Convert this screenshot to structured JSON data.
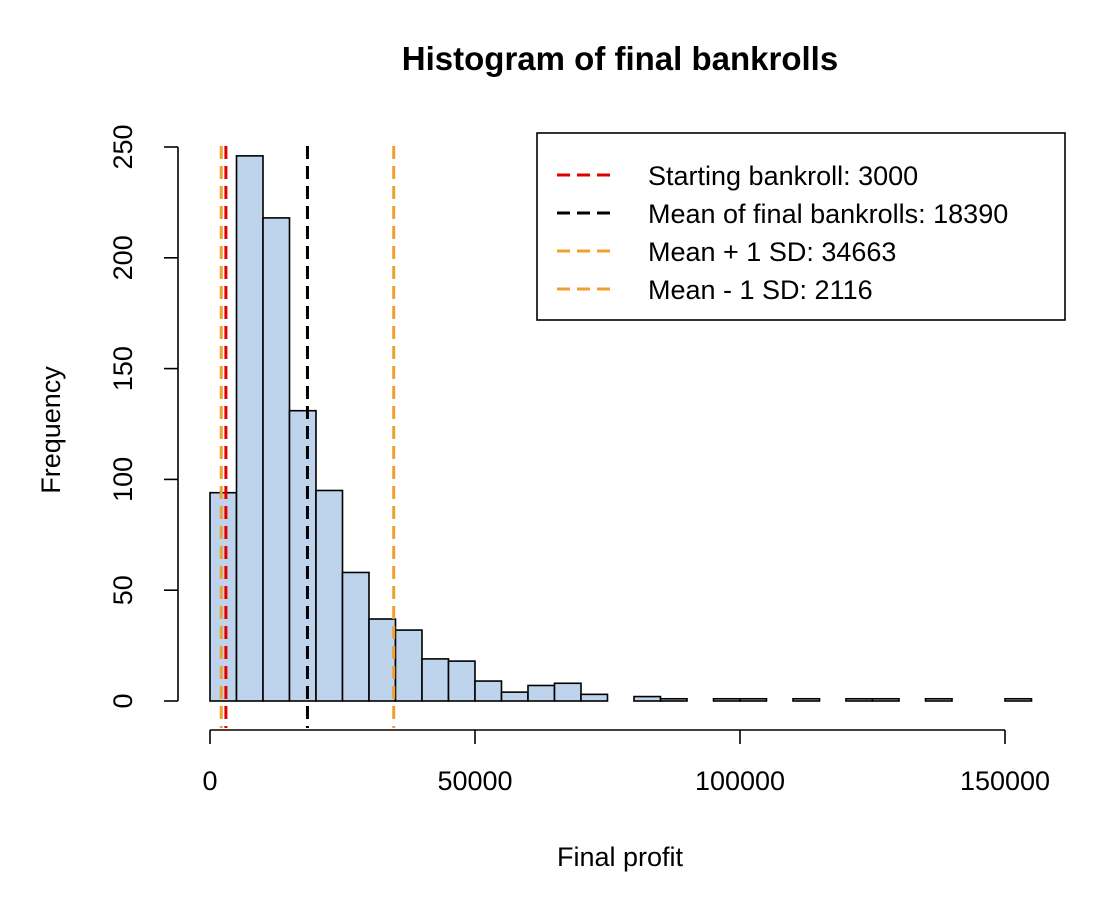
{
  "chart_data": {
    "type": "bar",
    "title": "Histogram of final bankrolls",
    "xlabel": "Final profit",
    "ylabel": "Frequency",
    "xlim": [
      0,
      155000
    ],
    "ylim": [
      0,
      250
    ],
    "bin_width": 5000,
    "x_ticks": [
      0,
      50000,
      100000,
      150000
    ],
    "y_ticks": [
      0,
      50,
      100,
      150,
      200,
      250
    ],
    "bars": [
      {
        "x0": 0,
        "x1": 5000,
        "count": 94
      },
      {
        "x0": 5000,
        "x1": 10000,
        "count": 246
      },
      {
        "x0": 10000,
        "x1": 15000,
        "count": 218
      },
      {
        "x0": 15000,
        "x1": 20000,
        "count": 131
      },
      {
        "x0": 20000,
        "x1": 25000,
        "count": 95
      },
      {
        "x0": 25000,
        "x1": 30000,
        "count": 58
      },
      {
        "x0": 30000,
        "x1": 35000,
        "count": 37
      },
      {
        "x0": 35000,
        "x1": 40000,
        "count": 32
      },
      {
        "x0": 40000,
        "x1": 45000,
        "count": 19
      },
      {
        "x0": 45000,
        "x1": 50000,
        "count": 18
      },
      {
        "x0": 50000,
        "x1": 55000,
        "count": 9
      },
      {
        "x0": 55000,
        "x1": 60000,
        "count": 4
      },
      {
        "x0": 60000,
        "x1": 65000,
        "count": 7
      },
      {
        "x0": 65000,
        "x1": 70000,
        "count": 8
      },
      {
        "x0": 70000,
        "x1": 75000,
        "count": 3
      },
      {
        "x0": 75000,
        "x1": 80000,
        "count": 0
      },
      {
        "x0": 80000,
        "x1": 85000,
        "count": 2
      },
      {
        "x0": 85000,
        "x1": 90000,
        "count": 1
      },
      {
        "x0": 90000,
        "x1": 95000,
        "count": 0
      },
      {
        "x0": 95000,
        "x1": 100000,
        "count": 1
      },
      {
        "x0": 100000,
        "x1": 105000,
        "count": 1
      },
      {
        "x0": 105000,
        "x1": 110000,
        "count": 0
      },
      {
        "x0": 110000,
        "x1": 115000,
        "count": 1
      },
      {
        "x0": 115000,
        "x1": 120000,
        "count": 0
      },
      {
        "x0": 120000,
        "x1": 125000,
        "count": 1
      },
      {
        "x0": 125000,
        "x1": 130000,
        "count": 1
      },
      {
        "x0": 130000,
        "x1": 135000,
        "count": 0
      },
      {
        "x0": 135000,
        "x1": 140000,
        "count": 1
      },
      {
        "x0": 140000,
        "x1": 145000,
        "count": 0
      },
      {
        "x0": 145000,
        "x1": 150000,
        "count": 0
      },
      {
        "x0": 150000,
        "x1": 155000,
        "count": 1
      }
    ],
    "bar_fill": "#bdd4ec",
    "bar_stroke": "#000000",
    "vlines": [
      {
        "name": "starting-bankroll",
        "x": 3000,
        "color": "#e00000",
        "label": "Starting bankroll: 3000"
      },
      {
        "name": "mean",
        "x": 18390,
        "color": "#000000",
        "label": "Mean of final bankrolls: 18390"
      },
      {
        "name": "mean-plus-sd",
        "x": 34663,
        "color": "#f0a030",
        "label": "Mean + 1 SD: 34663"
      },
      {
        "name": "mean-minus-sd",
        "x": 2116,
        "color": "#f0a030",
        "label": "Mean - 1 SD: 2116"
      }
    ],
    "legend_position": "top-right"
  }
}
